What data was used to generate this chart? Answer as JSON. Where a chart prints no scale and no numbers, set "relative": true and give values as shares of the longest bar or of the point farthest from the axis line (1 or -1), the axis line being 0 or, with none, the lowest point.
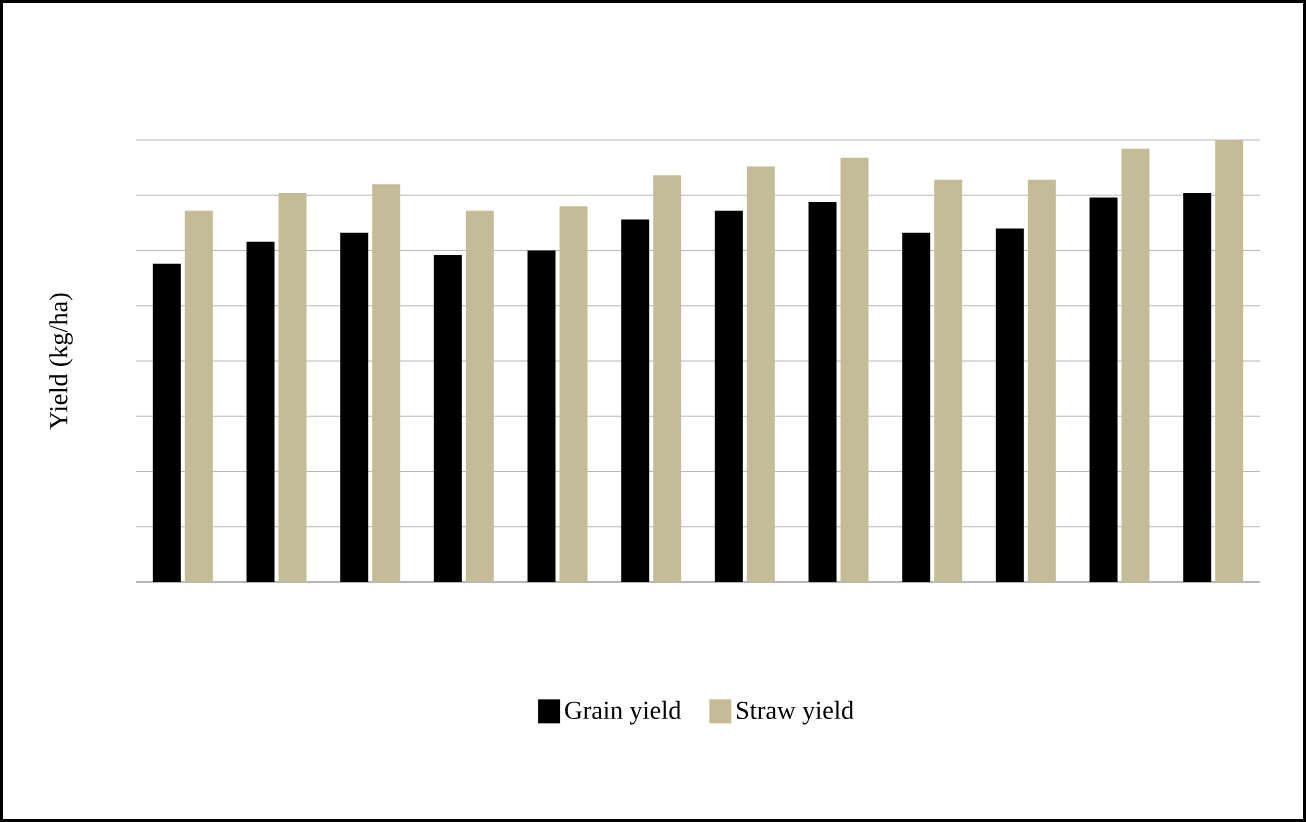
{
  "chart_data": {
    "type": "bar",
    "ylabel": "Yield (kg/ha)",
    "relative": true,
    "grid": "y",
    "legend": "bottom",
    "categories": [
      null,
      null,
      null,
      null,
      null,
      null,
      null,
      null,
      null,
      null,
      null,
      null
    ],
    "series": [
      {
        "name": "Grain yield",
        "color": "#000000",
        "values": [
          0.72,
          0.77,
          0.79,
          0.74,
          0.75,
          0.82,
          0.84,
          0.86,
          0.79,
          0.8,
          0.87,
          0.88
        ]
      },
      {
        "name": "Straw yield",
        "color": "#c4bc96",
        "values": [
          0.84,
          0.88,
          0.9,
          0.84,
          0.85,
          0.92,
          0.94,
          0.96,
          0.91,
          0.91,
          0.98,
          1
        ]
      }
    ]
  }
}
